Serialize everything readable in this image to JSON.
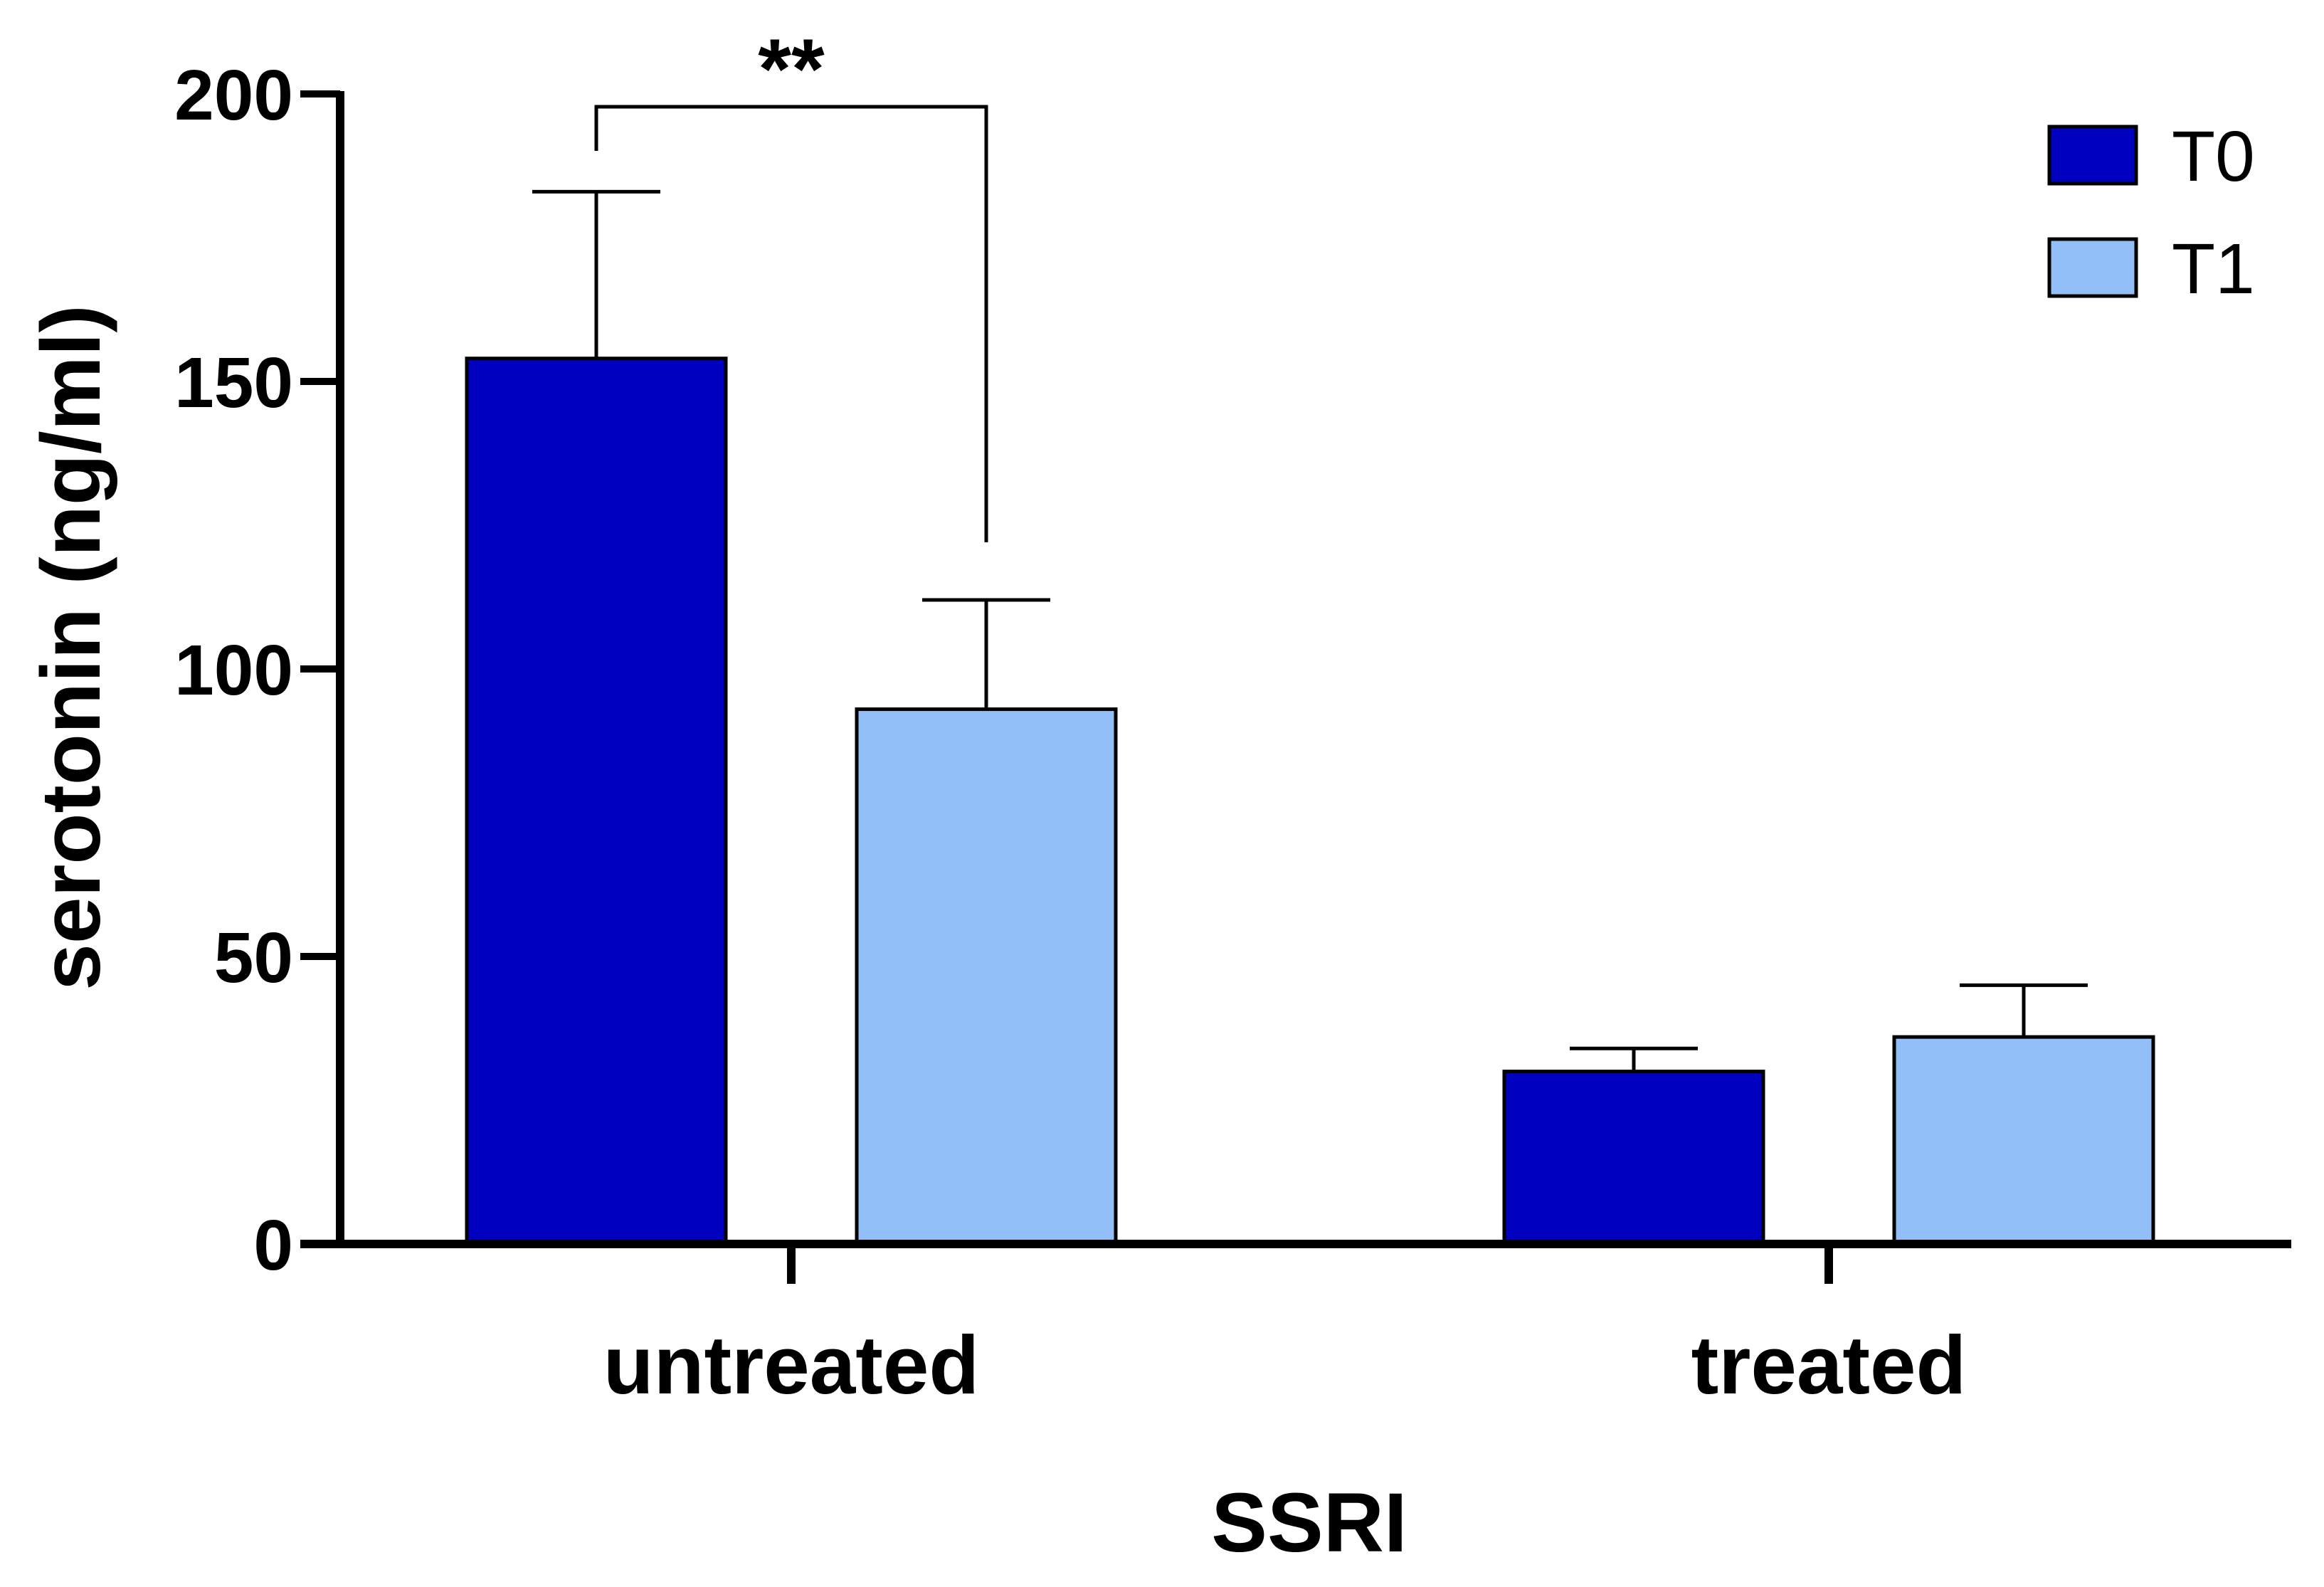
{
  "chart_data": {
    "type": "bar",
    "categories": [
      "untreated",
      "treated"
    ],
    "series": [
      {
        "name": "T0",
        "color": "#0000C0",
        "values": [
          154,
          30
        ],
        "errors": [
          29,
          4
        ]
      },
      {
        "name": "T1",
        "color": "#92BFF7",
        "values": [
          93,
          36
        ],
        "errors": [
          19,
          9
        ]
      }
    ],
    "xlabel": "SSRI",
    "ylabel": "serotonin (ng/ml)",
    "ylim": [
      0,
      200
    ],
    "yticks": [
      0,
      50,
      100,
      150,
      200
    ],
    "legend": {
      "position": "top-right",
      "entries": [
        "T0",
        "T1"
      ]
    },
    "annotations": [
      {
        "label": "**",
        "category": "untreated",
        "from_series": "T0",
        "to_series": "T1"
      }
    ]
  }
}
